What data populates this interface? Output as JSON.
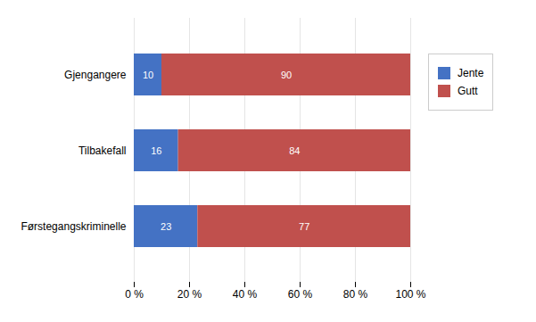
{
  "chart_data": {
    "type": "bar",
    "orientation": "horizontal",
    "stacked": true,
    "categories": [
      "Førstegangskriminelle",
      "Tilbakefall",
      "Gjengangere"
    ],
    "series": [
      {
        "name": "Jente",
        "color": "#4472C4",
        "values": [
          23,
          16,
          10
        ]
      },
      {
        "name": "Gutt",
        "color": "#C0504D",
        "values": [
          77,
          84,
          90
        ]
      }
    ],
    "xlim": [
      0,
      100
    ],
    "xticks": [
      {
        "value": 0,
        "label": "0 %"
      },
      {
        "value": 20,
        "label": "20 %"
      },
      {
        "value": 40,
        "label": "40 %"
      },
      {
        "value": 60,
        "label": "60 %"
      },
      {
        "value": 80,
        "label": "80 %"
      },
      {
        "value": 100,
        "label": "100 %"
      }
    ],
    "grid": true,
    "legend": "right",
    "data_labels": true
  }
}
